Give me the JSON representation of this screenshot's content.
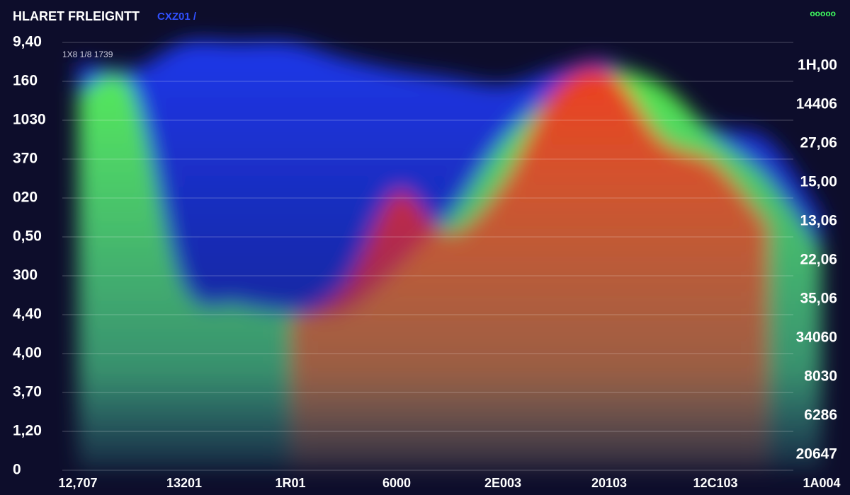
{
  "chart_data": {
    "type": "area",
    "title": "HLARET FRLEIGNTT",
    "subtitle": "CXZ01 /",
    "note": "1X8 1/8 1739",
    "corner_text": "ooooo",
    "background": "#0d0d2b",
    "x": [
      0,
      0.5,
      1,
      1.5,
      2,
      2.5,
      3,
      3.5,
      4,
      4.5,
      5,
      5.5,
      6,
      6.5,
      7
    ],
    "xlim": [
      0,
      7
    ],
    "xticks": [
      {
        "value": 0,
        "label": "12,707"
      },
      {
        "value": 1,
        "label": "13201"
      },
      {
        "value": 2,
        "label": "1R01"
      },
      {
        "value": 3,
        "label": "6000"
      },
      {
        "value": 4,
        "label": "2E003"
      },
      {
        "value": 5,
        "label": "20103"
      },
      {
        "value": 6,
        "label": "12C103"
      },
      {
        "value": 7,
        "label": "1A004"
      }
    ],
    "ylim": [
      0,
      11
    ],
    "yticks": [
      {
        "value": 11,
        "label": "9,40"
      },
      {
        "value": 10,
        "label": "160"
      },
      {
        "value": 9,
        "label": "1030"
      },
      {
        "value": 8,
        "label": "370"
      },
      {
        "value": 7,
        "label": "020"
      },
      {
        "value": 6,
        "label": "0,50"
      },
      {
        "value": 5,
        "label": "300"
      },
      {
        "value": 4,
        "label": "4,40"
      },
      {
        "value": 3,
        "label": "4,00"
      },
      {
        "value": 2,
        "label": "3,70"
      },
      {
        "value": 1,
        "label": "1,20"
      },
      0
    ],
    "y2lim": [
      0,
      11
    ],
    "y2ticks": [
      {
        "value": 10.4,
        "label": "1H,00"
      },
      {
        "value": 9.4,
        "label": "14406"
      },
      {
        "value": 8.4,
        "label": "27,06"
      },
      {
        "value": 7.4,
        "label": "15,00"
      },
      {
        "value": 6.4,
        "label": "13,06"
      },
      {
        "value": 5.4,
        "label": "22,06"
      },
      {
        "value": 4.4,
        "label": "35,06"
      },
      {
        "value": 3.4,
        "label": "34060"
      },
      {
        "value": 2.4,
        "label": "8030"
      },
      {
        "value": 1.4,
        "label": "6286"
      },
      {
        "value": 0.4,
        "label": "20647"
      }
    ],
    "grid": true,
    "series": [
      {
        "color": "#1f3cff",
        "values": [
          10.5,
          10.3,
          11,
          11,
          11,
          10.6,
          10.3,
          10.1,
          9.9,
          10.3,
          10.5,
          9.4,
          8.8,
          8.5,
          6.6
        ]
      },
      {
        "color": "#5cff4a",
        "values": [
          9.7,
          9.9,
          4.8,
          4.3,
          4.1,
          4.1,
          5.2,
          6.6,
          8.5,
          9.7,
          10.3,
          9.9,
          8.6,
          7.5,
          5.7
        ]
      },
      {
        "color": "#ff2a1a",
        "values": [
          null,
          null,
          null,
          null,
          3.9,
          4.8,
          7.2,
          6.1,
          7.4,
          9.9,
          10.3,
          8.5,
          7.9,
          6.3,
          null
        ]
      }
    ]
  }
}
